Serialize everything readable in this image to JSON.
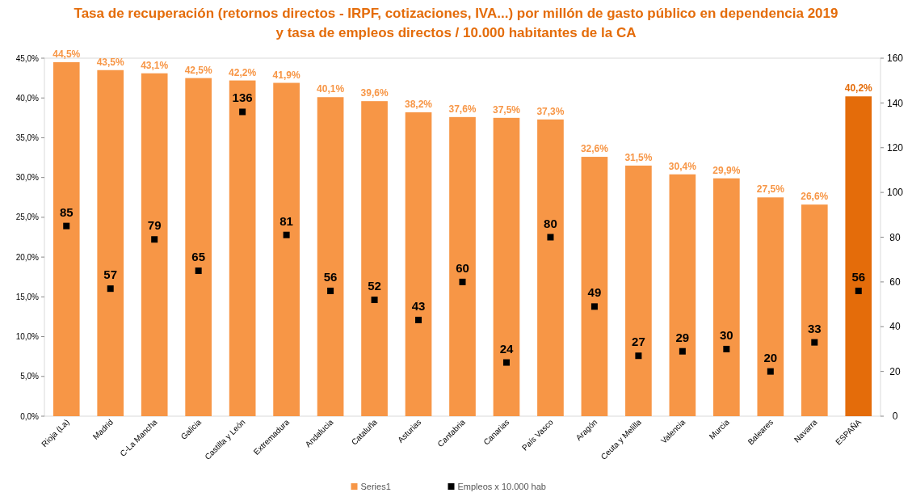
{
  "chart_data": {
    "type": "bar",
    "title": "Tasa de recuperación (retornos directos - IRPF, cotizaciones, IVA...) por millón de gasto público en dependencia 2019",
    "subtitle": "y tasa de empleos directos / 10.000 habitantes de la CA",
    "categories": [
      "Rioja (La)",
      "Madrid",
      "C-La Mancha",
      "Galicia",
      "Castilla y León",
      "Extremadura",
      "Andalucia",
      "Cataluña",
      "Asturias",
      "Cantabria",
      "Canarias",
      "País Vasco",
      "Aragón",
      "Ceuta y Melilla",
      "Valencia",
      "Murcia",
      "Baleares",
      "Navarra",
      "ESPAÑA"
    ],
    "series": [
      {
        "name": "Series1",
        "color": "#f79646",
        "colors": [
          "#f79646",
          "#f79646",
          "#f79646",
          "#f79646",
          "#f79646",
          "#f79646",
          "#f79646",
          "#f79646",
          "#f79646",
          "#f79646",
          "#f79646",
          "#f79646",
          "#f79646",
          "#f79646",
          "#f79646",
          "#f79646",
          "#f79646",
          "#f79646",
          "#e46c0a"
        ],
        "values": [
          44.5,
          43.5,
          43.1,
          42.5,
          42.2,
          41.9,
          40.1,
          39.6,
          38.2,
          37.6,
          37.5,
          37.3,
          32.6,
          31.5,
          30.4,
          29.9,
          27.5,
          26.6,
          40.2
        ],
        "value_labels": [
          "44,5%",
          "43,5%",
          "43,1%",
          "42,5%",
          "42,2%",
          "41,9%",
          "40,1%",
          "39,6%",
          "38,2%",
          "37,6%",
          "37,5%",
          "37,3%",
          "32,6%",
          "31,5%",
          "30,4%",
          "29,9%",
          "27,5%",
          "26,6%",
          "40,2%"
        ]
      },
      {
        "name": "Empleos x 10.000 hab",
        "type": "scatter",
        "axis": "y2",
        "color": "#000000",
        "values": [
          85,
          57,
          79,
          65,
          136,
          81,
          56,
          52,
          43,
          60,
          24,
          80,
          49,
          27,
          29,
          30,
          20,
          33,
          56
        ],
        "value_labels": [
          "85",
          "57",
          "79",
          "65",
          "136",
          "81",
          "56",
          "52",
          "43",
          "60",
          "24",
          "80",
          "49",
          "27",
          "29",
          "30",
          "20",
          "33",
          "56"
        ]
      }
    ],
    "ylim": [
      0,
      45
    ],
    "yticks": [
      {
        "value": 0,
        "label": "0,0%"
      },
      {
        "value": 5,
        "label": "5,0%"
      },
      {
        "value": 10,
        "label": "10,0%"
      },
      {
        "value": 15,
        "label": "15,0%"
      },
      {
        "value": 20,
        "label": "20,0%"
      },
      {
        "value": 25,
        "label": "25,0%"
      },
      {
        "value": 30,
        "label": "30,0%"
      },
      {
        "value": 35,
        "label": "35,0%"
      },
      {
        "value": 40,
        "label": "40,0%"
      },
      {
        "value": 45,
        "label": "45,0%"
      }
    ],
    "y2lim": [
      0,
      160
    ],
    "y2ticks": [
      0,
      20,
      40,
      60,
      80,
      100,
      120,
      140,
      160
    ],
    "marker": "square",
    "legend": "bottom"
  }
}
